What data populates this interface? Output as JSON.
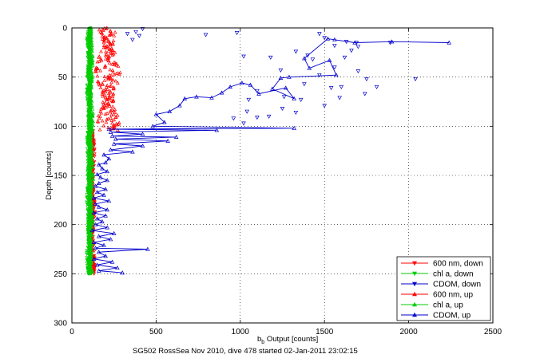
{
  "chart_data": {
    "type": "scatter",
    "title": "",
    "xlabel": "b_b Output [counts]",
    "xlabel_main": "b",
    "xlabel_sub": "b",
    "xlabel_rest": " Output [counts]",
    "ylabel": "Depth [counts]",
    "xlim": [
      0,
      2500
    ],
    "ylim": [
      0,
      300
    ],
    "y_reversed": true,
    "xticks": [
      0,
      500,
      1000,
      1500,
      2000,
      2500
    ],
    "yticks": [
      0,
      50,
      100,
      150,
      200,
      250,
      300
    ],
    "grid": "dotted",
    "legend_position": "bottom-right",
    "caption": "SG502 RossSea Nov 2010, dive 478 started 02-Jan-2011 23:02:15",
    "series": [
      {
        "name": "600 nm, down",
        "color": "#ff0000",
        "marker": "triangle-down",
        "connected": true,
        "depth_range": [
          104,
          250
        ],
        "x_center": 118,
        "x_spread": 14
      },
      {
        "name": "chl a, down",
        "color": "#00cc00",
        "marker": "triangle-down",
        "connected": false,
        "depth_range": [
          0,
          250
        ],
        "x_center": 102,
        "x_spread": 10
      },
      {
        "name": "CDOM, down",
        "color": "#0000cc",
        "marker": "triangle-down",
        "connected": false,
        "points": [
          [
            795,
            7
          ],
          [
            980,
            5
          ],
          [
            1470,
            6
          ],
          [
            1500,
            10
          ],
          [
            1630,
            14
          ],
          [
            1690,
            15
          ],
          [
            1890,
            15
          ],
          [
            1560,
            18
          ],
          [
            1660,
            23
          ],
          [
            1700,
            19
          ],
          [
            1330,
            24
          ],
          [
            1400,
            28
          ],
          [
            1620,
            30
          ],
          [
            1020,
            29
          ],
          [
            1180,
            30
          ],
          [
            1430,
            32
          ],
          [
            1560,
            40
          ],
          [
            1240,
            43
          ],
          [
            1700,
            44
          ],
          [
            1470,
            48
          ],
          [
            1750,
            52
          ],
          [
            2040,
            52
          ],
          [
            1380,
            57
          ],
          [
            1540,
            61
          ],
          [
            1600,
            60
          ],
          [
            1810,
            60
          ],
          [
            1100,
            64
          ],
          [
            1260,
            70
          ],
          [
            1360,
            73
          ],
          [
            1500,
            79
          ],
          [
            1590,
            71
          ],
          [
            1740,
            67
          ],
          [
            1050,
            73
          ],
          [
            1170,
            90
          ],
          [
            1250,
            82
          ],
          [
            1040,
            85
          ],
          [
            1330,
            86
          ],
          [
            960,
            92
          ],
          [
            1020,
            97
          ],
          [
            1100,
            91
          ],
          [
            380,
            4
          ],
          [
            420,
            1
          ],
          [
            360,
            12
          ],
          [
            400,
            8
          ],
          [
            330,
            6
          ]
        ]
      },
      {
        "name": "600 nm, up",
        "color": "#ff0000",
        "marker": "triangle-up",
        "connected": false,
        "depth_range": [
          0,
          104
        ],
        "x_center": 215,
        "x_spread": 55
      },
      {
        "name": "chl a, up",
        "color": "#00cc00",
        "marker": "triangle-up",
        "connected": false,
        "depth_range": [
          0,
          250
        ],
        "x_center": 110,
        "x_spread": 12
      },
      {
        "name": "CDOM, up",
        "color": "#0000cc",
        "marker": "triangle-up",
        "connected": true,
        "points": [
          [
            2240,
            15
          ],
          [
            1900,
            14
          ],
          [
            1680,
            15
          ],
          [
            1560,
            12
          ],
          [
            1520,
            11
          ],
          [
            1380,
            31
          ],
          [
            1410,
            41
          ],
          [
            1530,
            33
          ],
          [
            1570,
            48
          ],
          [
            1290,
            50
          ],
          [
            1240,
            51
          ],
          [
            1190,
            62
          ],
          [
            1320,
            72
          ],
          [
            1270,
            61
          ],
          [
            1110,
            67
          ],
          [
            1060,
            58
          ],
          [
            1010,
            56
          ],
          [
            940,
            60
          ],
          [
            890,
            66
          ],
          [
            830,
            71
          ],
          [
            740,
            70
          ],
          [
            670,
            72
          ],
          [
            640,
            79
          ],
          [
            580,
            85
          ],
          [
            500,
            88
          ],
          [
            550,
            96
          ],
          [
            480,
            100
          ],
          [
            1320,
            102
          ],
          [
            220,
            103
          ],
          [
            860,
            104
          ],
          [
            230,
            106
          ],
          [
            420,
            108
          ],
          [
            240,
            110
          ],
          [
            620,
            111
          ],
          [
            260,
            113
          ],
          [
            570,
            115
          ],
          [
            250,
            118
          ],
          [
            420,
            120
          ],
          [
            230,
            124
          ],
          [
            360,
            126
          ],
          [
            190,
            129
          ],
          [
            220,
            133
          ],
          [
            200,
            137
          ],
          [
            160,
            139
          ],
          [
            180,
            143
          ],
          [
            210,
            146
          ],
          [
            150,
            149
          ],
          [
            170,
            152
          ],
          [
            210,
            155
          ],
          [
            160,
            158
          ],
          [
            140,
            161
          ],
          [
            200,
            164
          ],
          [
            150,
            167
          ],
          [
            190,
            170
          ],
          [
            130,
            173
          ],
          [
            220,
            176
          ],
          [
            140,
            179
          ],
          [
            160,
            182
          ],
          [
            210,
            185
          ],
          [
            130,
            188
          ],
          [
            200,
            191
          ],
          [
            150,
            194
          ],
          [
            180,
            197
          ],
          [
            140,
            200
          ],
          [
            210,
            203
          ],
          [
            120,
            206
          ],
          [
            250,
            209
          ],
          [
            160,
            212
          ],
          [
            230,
            215
          ],
          [
            130,
            218
          ],
          [
            190,
            221
          ],
          [
            140,
            224
          ],
          [
            450,
            225
          ],
          [
            160,
            228
          ],
          [
            200,
            232
          ],
          [
            130,
            235
          ],
          [
            240,
            238
          ],
          [
            150,
            241
          ],
          [
            270,
            244
          ],
          [
            160,
            247
          ],
          [
            300,
            249
          ]
        ]
      }
    ]
  }
}
